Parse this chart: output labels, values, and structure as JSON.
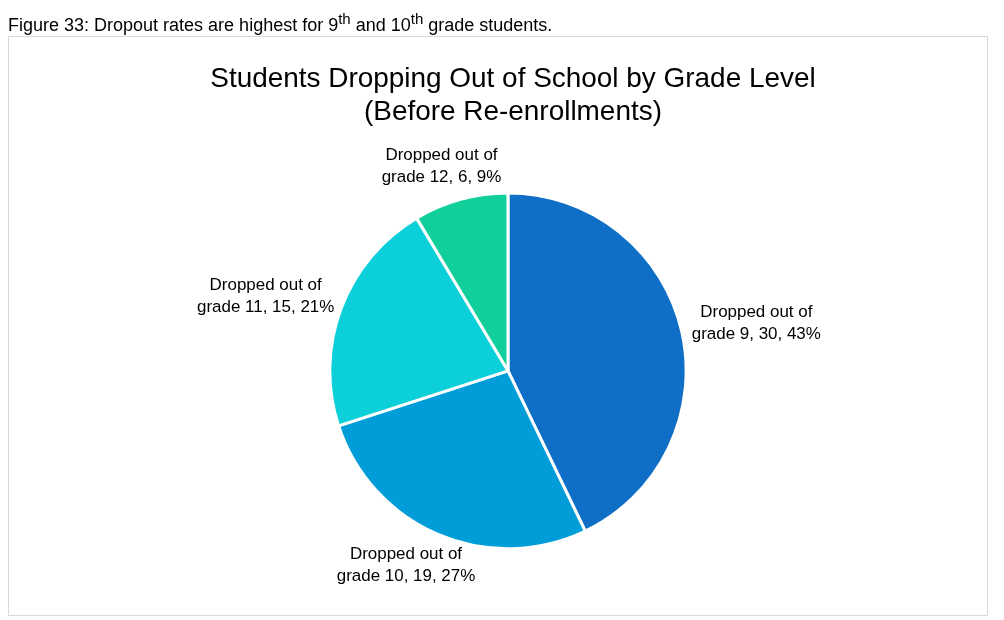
{
  "chart_data": {
    "type": "pie",
    "title": "Students Dropping Out of School by Grade Level (Before Re-enrollments)",
    "categories": [
      "Dropped out of grade 9",
      "Dropped out of grade 10",
      "Dropped out of grade 11",
      "Dropped out of grade 12"
    ],
    "values": [
      30,
      19,
      15,
      6
    ],
    "value_labels": [
      "30, 43%",
      "19, 27%",
      "15, 21%",
      "6, 9%"
    ],
    "colors": [
      "#0f6fc6",
      "#009dd9",
      "#0bd0d9",
      "#10cf9b"
    ],
    "legend": false,
    "annotations": [
      "Figure 33: Dropout rates are highest for 9$^{th}$ and 10$^{th}$ grade students."
    ]
  }
}
